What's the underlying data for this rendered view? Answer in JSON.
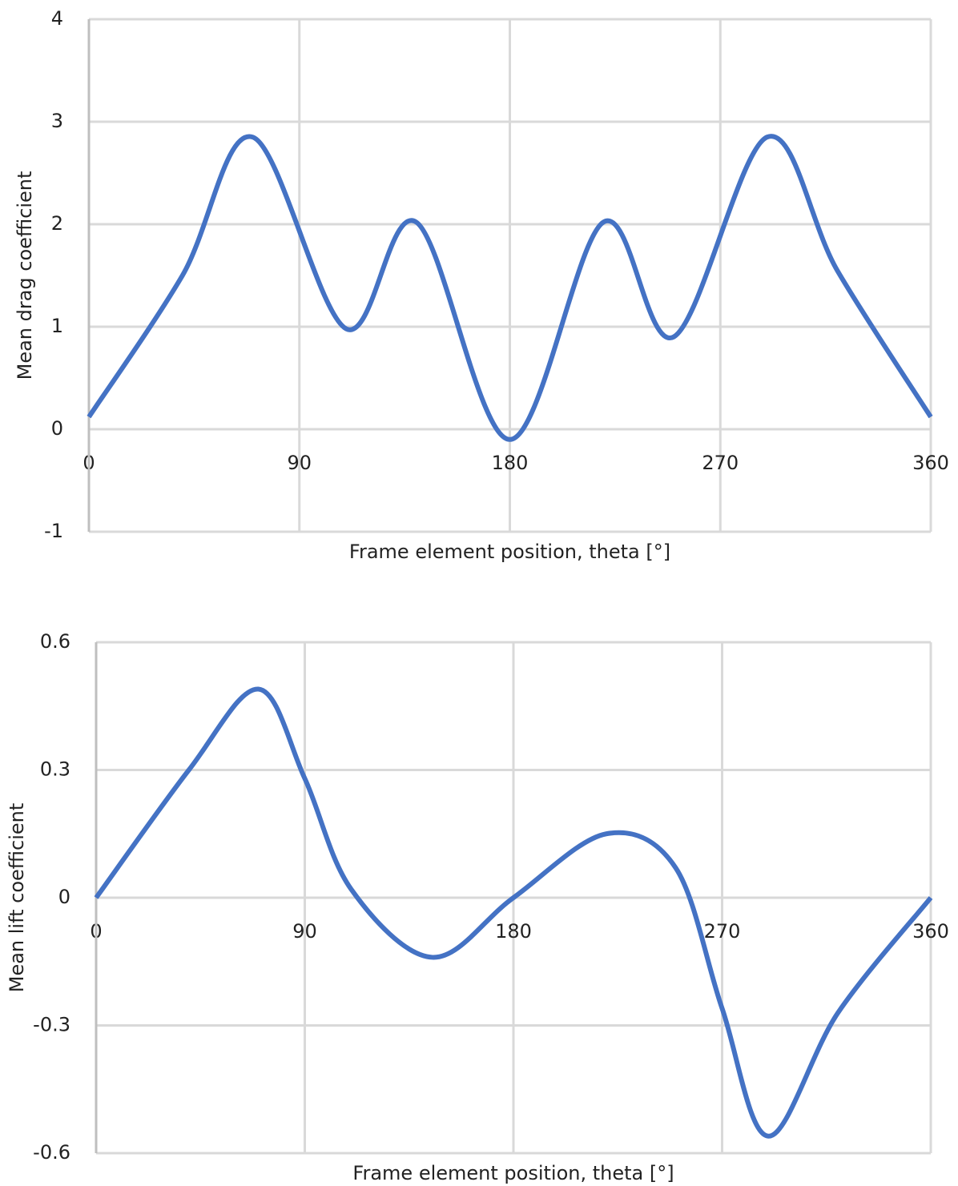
{
  "chart_data": [
    {
      "type": "line",
      "x_label": "Frame element position, theta [°]",
      "y_label": "Mean drag coefficient",
      "x": [
        0,
        40,
        70,
        110,
        140,
        180,
        220,
        250,
        290,
        320,
        360
      ],
      "values": [
        0.12,
        1.5,
        2.85,
        0.98,
        2.02,
        -0.1,
        2.02,
        0.9,
        2.85,
        1.55,
        0.12
      ],
      "color": "#4472c4",
      "xlim": [
        0,
        360
      ],
      "ylim": [
        -1,
        4
      ],
      "xticks": [
        0,
        90,
        180,
        270,
        360
      ],
      "yticks": [
        -1,
        0,
        1,
        2,
        3,
        4
      ],
      "grid": true
    },
    {
      "type": "line",
      "x_label": "Frame element position, theta [°]",
      "y_label": "Mean lift coefficient",
      "x": [
        0,
        40,
        70,
        90,
        110,
        145,
        180,
        220,
        250,
        270,
        290,
        320,
        360
      ],
      "values": [
        0,
        0.3,
        0.49,
        0.28,
        0.02,
        -0.14,
        0,
        0.15,
        0.07,
        -0.26,
        -0.56,
        -0.27,
        0
      ],
      "color": "#4472c4",
      "xlim": [
        0,
        360
      ],
      "ylim": [
        -0.6,
        0.6
      ],
      "xticks": [
        0,
        90,
        180,
        270,
        360
      ],
      "yticks": [
        -0.6,
        -0.3,
        0,
        0.3,
        0.6
      ],
      "grid": true
    }
  ]
}
